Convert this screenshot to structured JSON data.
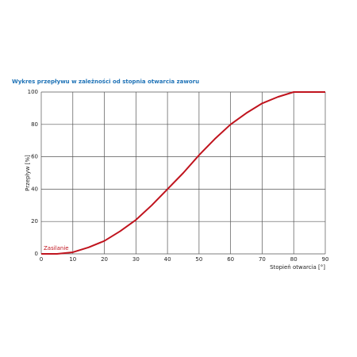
{
  "chart_data": {
    "type": "line",
    "title": "Wykres przepływu w zależności od stopnia otwarcia zaworu",
    "x_label": "Stopień otwarcia [°]",
    "y_label": "Przepływ [%]",
    "annotation": "Zasilanie",
    "x": [
      0,
      5,
      10,
      15,
      20,
      25,
      30,
      35,
      40,
      45,
      50,
      55,
      60,
      65,
      70,
      75,
      80,
      85,
      90
    ],
    "values": [
      0,
      0,
      1,
      4,
      8,
      14,
      21,
      30,
      40,
      50,
      61,
      71,
      80,
      87,
      93,
      97,
      100,
      100,
      100
    ],
    "color": "#c0141e",
    "xlim": [
      0,
      90
    ],
    "xticks": [
      0,
      10,
      20,
      30,
      40,
      50,
      60,
      70,
      80,
      90
    ],
    "ylim": [
      0,
      100
    ],
    "yticks": [
      0,
      20,
      40,
      60,
      80,
      100
    ],
    "grid": true
  }
}
